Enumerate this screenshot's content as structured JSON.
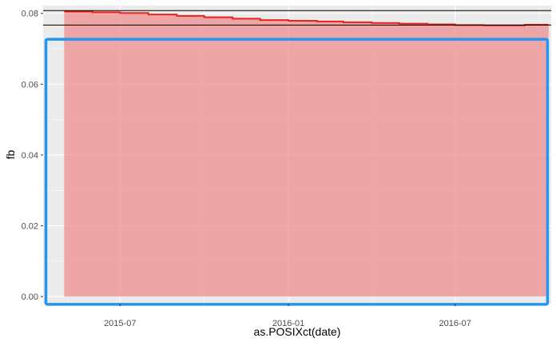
{
  "chart_data": {
    "type": "area",
    "xlabel": "as.POSIXct(date)",
    "ylabel": "fb",
    "x_range": [
      "2015-04-08",
      "2016-10-14"
    ],
    "ylim": [
      -0.002,
      0.0822
    ],
    "x_ticks": [
      {
        "label": "2015-07",
        "date": "2015-07-01"
      },
      {
        "label": "2016-01",
        "date": "2016-01-01"
      },
      {
        "label": "2016-07",
        "date": "2016-07-01"
      }
    ],
    "y_ticks": [
      {
        "label": "0.00",
        "value": 0.0
      },
      {
        "label": "0.02",
        "value": 0.02
      },
      {
        "label": "0.04",
        "value": 0.04
      },
      {
        "label": "0.06",
        "value": 0.06
      },
      {
        "label": "0.08",
        "value": 0.08
      }
    ],
    "series": [
      {
        "points": [
          {
            "date": "2015-05-01",
            "value": 0.0805
          },
          {
            "date": "2015-06-01",
            "value": 0.0803
          },
          {
            "date": "2015-07-01",
            "value": 0.0801
          },
          {
            "date": "2015-08-01",
            "value": 0.0797
          },
          {
            "date": "2015-09-01",
            "value": 0.0793
          },
          {
            "date": "2015-10-01",
            "value": 0.0789
          },
          {
            "date": "2015-11-01",
            "value": 0.0785
          },
          {
            "date": "2015-12-01",
            "value": 0.0781
          },
          {
            "date": "2016-01-01",
            "value": 0.0779
          },
          {
            "date": "2016-02-01",
            "value": 0.0777
          },
          {
            "date": "2016-03-01",
            "value": 0.0775
          },
          {
            "date": "2016-04-01",
            "value": 0.0773
          },
          {
            "date": "2016-05-01",
            "value": 0.0771
          },
          {
            "date": "2016-06-01",
            "value": 0.0769
          },
          {
            "date": "2016-07-01",
            "value": 0.0767
          },
          {
            "date": "2016-08-01",
            "value": 0.0766
          },
          {
            "date": "2016-09-15",
            "value": 0.0768
          }
        ]
      }
    ],
    "hlines": [
      0.0808,
      0.0767
    ],
    "fill_color": "#f08080",
    "fill_opacity": 0.65,
    "line_color": "#e8231e",
    "panel_background": "#ebebeb",
    "grid_color": "#ffffff",
    "hline_color": "#000000",
    "annotation": {
      "shape": "rectangle",
      "color": "#2196f3",
      "x_from": "2015-04-11",
      "x_to": "2016-10-10",
      "y_from": -0.0022,
      "y_to": 0.0727
    },
    "grid": true,
    "legend": "none"
  }
}
